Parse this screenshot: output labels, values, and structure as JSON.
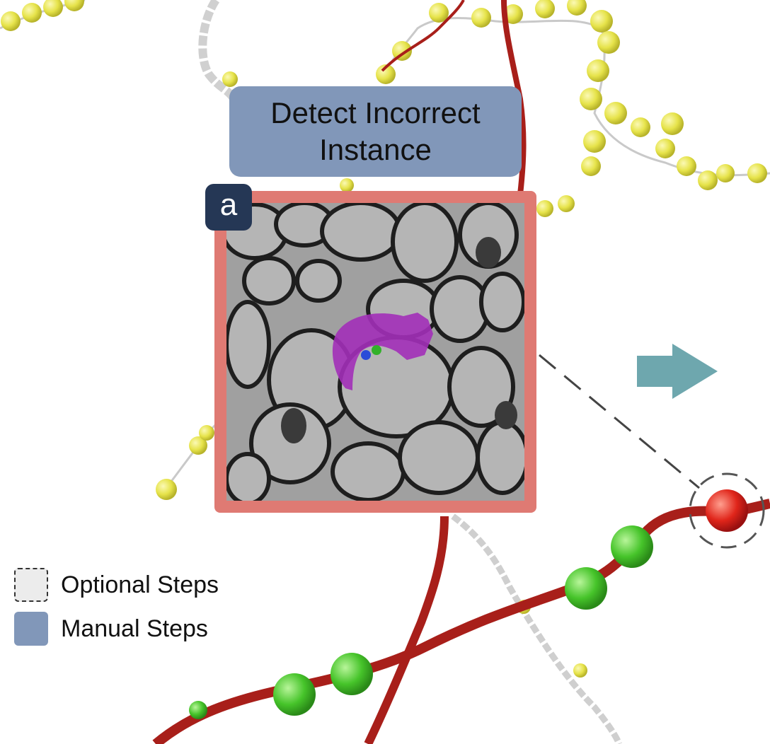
{
  "step": {
    "line1": "Detect Incorrect",
    "line2": "Instance"
  },
  "panel_badge": "a",
  "legend": [
    {
      "label": "Optional Steps",
      "kind": "optional"
    },
    {
      "label": "Manual Steps",
      "kind": "manual"
    }
  ],
  "colors": {
    "manual_step": "#8197b9",
    "optional_step": "#ececec",
    "frame": "#df7a73",
    "badge": "#253755",
    "arrow": "#6ea7ae",
    "skeleton_red": "#a81f1a",
    "node_yellow": "#e6e34a",
    "node_green": "#46c42a",
    "node_red": "#e0251a",
    "segment_magenta": "#a22fb8"
  },
  "icons": {
    "arrow": "arrow-right-icon",
    "target": "dashed-circle-target-icon"
  }
}
